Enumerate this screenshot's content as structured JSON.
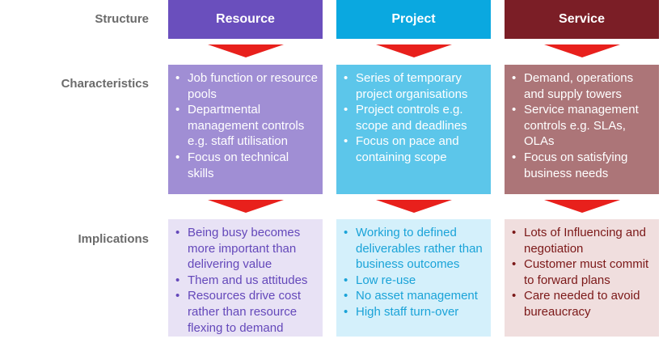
{
  "row_labels": {
    "structure": "Structure",
    "characteristics": "Characteristics",
    "implications": "Implications"
  },
  "columns": [
    {
      "header": "Resource",
      "characteristics": [
        "Job function or resource pools",
        "Departmental management controls e.g. staff utilisation",
        "Focus on technical skills"
      ],
      "implications": [
        "Being busy becomes more important than delivering value",
        "Them and us attitudes",
        "Resources drive cost rather than resource flexing to demand"
      ]
    },
    {
      "header": "Project",
      "characteristics": [
        "Series of temporary project organisations",
        "Project controls e.g. scope and deadlines",
        "Focus on pace and containing scope"
      ],
      "implications": [
        "Working to defined deliverables rather than business outcomes",
        "Low re-use",
        "No asset management",
        "High staff turn-over"
      ]
    },
    {
      "header": "Service",
      "characteristics": [
        "Demand, operations and supply towers",
        "Service management controls e.g. SLAs, OLAs",
        "Focus on satisfying business needs"
      ],
      "implications": [
        "Lots of Influencing and negotiation",
        "Customer must commit to forward plans",
        "Care needed to avoid bureaucracy"
      ]
    }
  ],
  "colors": {
    "resource": "#6a4fbd",
    "project": "#0aa8e0",
    "service": "#7b1e26",
    "arrow": "#e8201c",
    "label": "#6b6b6b"
  }
}
